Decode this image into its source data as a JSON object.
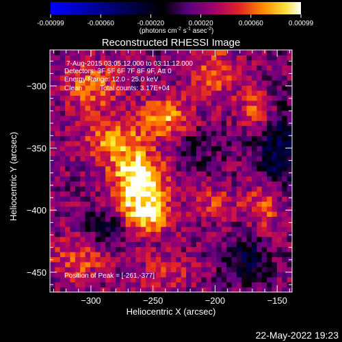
{
  "title": "Reconstructed RHESSI Image",
  "colorbar": {
    "ticks": [
      "-0.00099",
      "-0.00060",
      "-0.00020",
      "0.00020",
      "0.00060",
      "0.00099"
    ],
    "unit_label": {
      "prefix": "(photons cm",
      "sup1": "-2",
      "mid1": " s",
      "sup2": "-1",
      "mid2": " asec",
      "sup3": "-2",
      "suffix": ")"
    }
  },
  "annotations": {
    "line1": "7-Aug-2015 03:05:12.000 to 03:11:12.000",
    "line2": "Detectors: 3F 5F 6F 7F 8F 9F, Att 0",
    "line3": "Energy Range: 12.0 - 25.0 keV",
    "line4a": "Clean",
    "line4b": "Total counts: 3.17E+04",
    "peak": "Position of Peak = [-261,-377]"
  },
  "footer_timestamp": "22-May-2022 19:23",
  "chart_data": {
    "type": "heatmap",
    "title": "Reconstructed RHESSI Image",
    "xlabel": "Heliocentric X (arcsec)",
    "ylabel": "Heliocentric Y (arcsec)",
    "xlim": [
      -333,
      -138
    ],
    "ylim": [
      -466,
      -271
    ],
    "x_ticks": [
      -300,
      -250,
      -200,
      -150
    ],
    "y_ticks": [
      -300,
      -350,
      -400,
      -450
    ],
    "x_tick_labels": [
      "−300",
      "−250",
      "−200",
      "−150"
    ],
    "y_tick_labels": [
      "−300",
      "−350",
      "−400",
      "−450"
    ],
    "value_range": [
      -0.00099,
      0.00099
    ],
    "peak_position": [
      -261,
      -377
    ],
    "colormap": [
      "#0000ff",
      "#000000",
      "#5a0080",
      "#a0006e",
      "#e0202a",
      "#ff6a00",
      "#ffb400",
      "#ffff60",
      "#ffffff"
    ],
    "blobs": [
      {
        "x": -261,
        "y": -377,
        "sx": 14,
        "sy": 14,
        "amp": 0.00099
      },
      {
        "x": -255,
        "y": -405,
        "sx": 14,
        "sy": 10,
        "amp": 0.00075
      },
      {
        "x": -280,
        "y": -345,
        "sx": 18,
        "sy": 14,
        "amp": 0.00055
      },
      {
        "x": -240,
        "y": -325,
        "sx": 14,
        "sy": 12,
        "amp": 0.00055
      },
      {
        "x": -300,
        "y": -300,
        "sx": 16,
        "sy": 14,
        "amp": 0.00045
      },
      {
        "x": -200,
        "y": -290,
        "sx": 14,
        "sy": 16,
        "amp": 0.0004
      },
      {
        "x": -165,
        "y": -320,
        "sx": 10,
        "sy": 12,
        "amp": 0.00045
      },
      {
        "x": -160,
        "y": -395,
        "sx": 10,
        "sy": 14,
        "amp": 0.00045
      },
      {
        "x": -310,
        "y": -440,
        "sx": 16,
        "sy": 12,
        "amp": 0.0004
      },
      {
        "x": -200,
        "y": -395,
        "sx": 14,
        "sy": 10,
        "amp": 0.0003
      },
      {
        "x": -240,
        "y": -450,
        "sx": 16,
        "sy": 12,
        "amp": 0.00025
      },
      {
        "x": -150,
        "y": -350,
        "sx": 12,
        "sy": 24,
        "amp": -0.00055
      },
      {
        "x": -175,
        "y": -440,
        "sx": 12,
        "sy": 14,
        "amp": -0.00045
      },
      {
        "x": -285,
        "y": -415,
        "sx": 12,
        "sy": 10,
        "amp": -0.00035
      },
      {
        "x": -215,
        "y": -350,
        "sx": 12,
        "sy": 10,
        "amp": -0.00025
      }
    ]
  }
}
